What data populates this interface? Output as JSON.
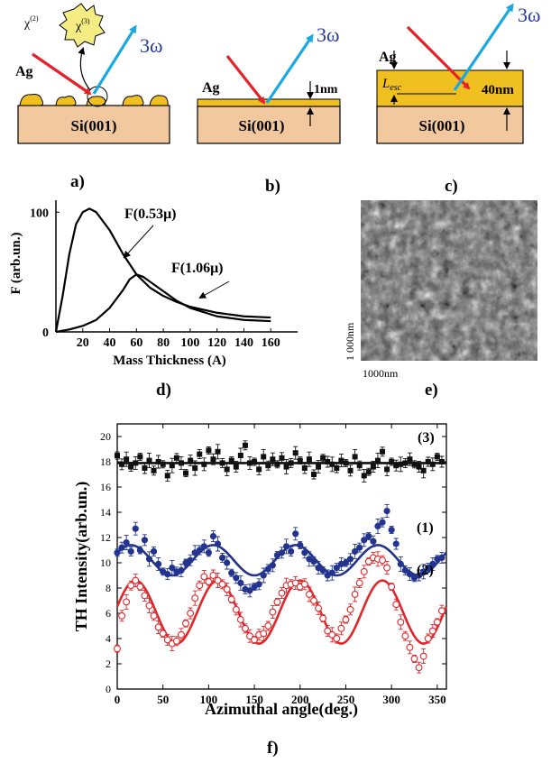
{
  "panel_labels": {
    "a": "a)",
    "b": "b)",
    "c": "c)",
    "d": "d)",
    "e": "e)",
    "f": "f)"
  },
  "schematics": {
    "a": {
      "metal": "Ag",
      "substrate": "Si(001)",
      "chi2": "χ",
      "chi2_sup": "(2)",
      "chi3": "χ",
      "chi3_sup": "(3)",
      "harmonic": "3ω"
    },
    "b": {
      "metal": "Ag",
      "substrate": "Si(001)",
      "thickness": "1nm",
      "harmonic": "3ω"
    },
    "c": {
      "metal": "Ag",
      "substrate": "Si(001)",
      "thickness": "40nm",
      "escape": "L",
      "escape_sub": "esc",
      "harmonic": "3ω"
    }
  },
  "colors": {
    "film": "#f0c020",
    "substrate": "#f2c89e",
    "incident": "#e8202a",
    "outgoing": "#1aa8e0",
    "series1": "#23348f",
    "series2": "#e0282c",
    "series3": "#111111"
  },
  "chart_data": [
    {
      "type": "line",
      "panel": "d",
      "xlabel": "Mass Thickness (A)",
      "ylabel": "F (arb.un.)",
      "xlim": [
        0,
        180
      ],
      "ylim": [
        0,
        110
      ],
      "x_ticks": [
        20,
        40,
        60,
        80,
        100,
        120,
        140,
        160
      ],
      "y_ticks": [
        0,
        100
      ],
      "series": [
        {
          "name": "F(0.53μ)",
          "x": [
            0,
            5,
            10,
            15,
            20,
            25,
            30,
            40,
            50,
            60,
            70,
            80,
            90,
            100,
            120,
            140,
            160
          ],
          "y": [
            0,
            30,
            65,
            90,
            100,
            103,
            100,
            85,
            65,
            48,
            37,
            30,
            25,
            21,
            16,
            13,
            12
          ]
        },
        {
          "name": "F(1.06μ)",
          "x": [
            0,
            10,
            20,
            30,
            40,
            50,
            55,
            60,
            65,
            70,
            80,
            90,
            100,
            120,
            140,
            160
          ],
          "y": [
            0,
            2,
            5,
            10,
            20,
            35,
            44,
            48,
            46,
            42,
            34,
            26,
            20,
            13,
            10,
            9
          ]
        }
      ]
    },
    {
      "type": "scatter",
      "panel": "f",
      "xlabel": "Azimuthal angle(deg.)",
      "ylabel": "TH Intensity(arb.un.)",
      "xlim": [
        0,
        360
      ],
      "ylim": [
        0,
        21
      ],
      "x_ticks": [
        0,
        50,
        100,
        150,
        200,
        250,
        300,
        350
      ],
      "y_ticks": [
        0,
        2,
        4,
        6,
        8,
        10,
        12,
        14,
        16,
        18,
        20
      ],
      "series": [
        {
          "name": "(3)",
          "fit": {
            "type": "constant",
            "value": 17.9
          },
          "x": [
            0,
            5,
            10,
            15,
            20,
            25,
            30,
            35,
            40,
            45,
            50,
            55,
            60,
            65,
            70,
            75,
            80,
            85,
            90,
            95,
            100,
            105,
            110,
            115,
            120,
            125,
            130,
            135,
            140,
            145,
            150,
            155,
            160,
            165,
            170,
            175,
            180,
            185,
            190,
            195,
            200,
            205,
            210,
            215,
            220,
            225,
            230,
            235,
            240,
            245,
            250,
            255,
            260,
            265,
            270,
            275,
            280,
            285,
            290,
            295,
            300,
            305,
            310,
            315,
            320,
            325,
            330,
            335,
            340,
            345,
            350,
            355
          ],
          "y": [
            18.5,
            17.8,
            18.2,
            17.6,
            17.9,
            18.4,
            17.5,
            18.1,
            17.3,
            18.0,
            17.8,
            16.9,
            17.7,
            18.3,
            17.9,
            17.1,
            18.1,
            17.5,
            18.6,
            17.8,
            18.9,
            18.2,
            18.8,
            17.9,
            17.4,
            18.1,
            17.6,
            18.5,
            19.3,
            17.9,
            18.0,
            17.4,
            18.4,
            17.7,
            18.2,
            17.8,
            18.3,
            17.6,
            17.9,
            18.7,
            18.1,
            17.5,
            18.2,
            17.0,
            17.6,
            18.3,
            18.0,
            17.8,
            17.5,
            18.1,
            17.9,
            17.3,
            18.4,
            17.7,
            16.9,
            17.2,
            17.6,
            18.1,
            18.8,
            17.4,
            18.0,
            17.7,
            17.8,
            17.9,
            18.2,
            17.8,
            17.6,
            17.3,
            18.0,
            17.8,
            18.4,
            18.0
          ]
        },
        {
          "name": "(1)",
          "fit": {
            "type": "cosine",
            "offset": 10.2,
            "amp": 1.2,
            "period": 90,
            "phase": 15
          },
          "x": [
            0,
            5,
            10,
            15,
            20,
            25,
            30,
            35,
            40,
            45,
            50,
            55,
            60,
            65,
            70,
            75,
            80,
            85,
            90,
            95,
            100,
            105,
            110,
            115,
            120,
            125,
            130,
            135,
            140,
            145,
            150,
            155,
            160,
            165,
            170,
            175,
            180,
            185,
            190,
            195,
            200,
            205,
            210,
            215,
            220,
            225,
            230,
            235,
            240,
            245,
            250,
            255,
            260,
            265,
            270,
            275,
            280,
            285,
            290,
            295,
            300,
            305,
            310,
            315,
            320,
            325,
            330,
            335,
            340,
            345,
            350,
            355
          ],
          "y": [
            10.8,
            11.2,
            11.6,
            10.9,
            12.7,
            11.0,
            11.8,
            10.3,
            10.9,
            9.9,
            9.3,
            9.1,
            9.6,
            9.3,
            9.4,
            10.0,
            10.2,
            10.8,
            11.0,
            11.3,
            10.8,
            12.1,
            11.5,
            10.4,
            10.0,
            9.2,
            8.8,
            8.4,
            7.9,
            7.8,
            8.1,
            8.3,
            9.0,
            9.5,
            9.8,
            10.6,
            10.8,
            11.3,
            10.9,
            12.3,
            11.4,
            10.8,
            10.3,
            10.1,
            9.6,
            9.4,
            9.0,
            9.2,
            9.6,
            9.9,
            10.0,
            10.3,
            10.9,
            11.2,
            11.8,
            12.1,
            11.7,
            12.9,
            13.2,
            14.1,
            12.6,
            11.5,
            9.9,
            9.4,
            9.1,
            8.8,
            9.0,
            9.3,
            9.6,
            9.9,
            10.3,
            10.4
          ]
        },
        {
          "name": "(2)",
          "fit": {
            "type": "cosine",
            "offset": 6.1,
            "amp": 2.5,
            "period": 90,
            "phase": 20
          },
          "x": [
            0,
            5,
            10,
            15,
            20,
            25,
            30,
            35,
            40,
            45,
            50,
            55,
            60,
            65,
            70,
            75,
            80,
            85,
            90,
            95,
            100,
            105,
            110,
            115,
            120,
            125,
            130,
            135,
            140,
            145,
            150,
            155,
            160,
            165,
            170,
            175,
            180,
            185,
            190,
            195,
            200,
            205,
            210,
            215,
            220,
            225,
            230,
            235,
            240,
            245,
            250,
            255,
            260,
            265,
            270,
            275,
            280,
            285,
            290,
            295,
            300,
            305,
            310,
            315,
            320,
            325,
            330,
            335,
            340,
            345,
            350,
            355
          ],
          "y": [
            3.2,
            5.8,
            6.9,
            8.2,
            8.6,
            8.1,
            7.4,
            6.6,
            5.8,
            4.9,
            4.4,
            3.9,
            3.6,
            3.8,
            4.3,
            5.2,
            6.0,
            7.2,
            8.2,
            8.9,
            8.5,
            9.0,
            8.6,
            8.3,
            7.9,
            7.1,
            6.3,
            5.5,
            4.8,
            4.2,
            3.9,
            4.3,
            4.4,
            5.0,
            6.1,
            6.9,
            7.6,
            8.2,
            8.3,
            8.4,
            8.1,
            8.3,
            7.5,
            7.0,
            6.4,
            5.6,
            4.6,
            4.3,
            4.0,
            4.8,
            5.5,
            6.3,
            7.5,
            8.4,
            9.3,
            10.1,
            10.4,
            10.3,
            10.2,
            9.6,
            8.1,
            6.7,
            5.3,
            4.2,
            3.3,
            2.4,
            1.7,
            2.6,
            4.0,
            4.6,
            5.3,
            6.2
          ]
        }
      ]
    }
  ],
  "afm": {
    "width_label": "1000nm",
    "height_label": "1 000nm"
  }
}
